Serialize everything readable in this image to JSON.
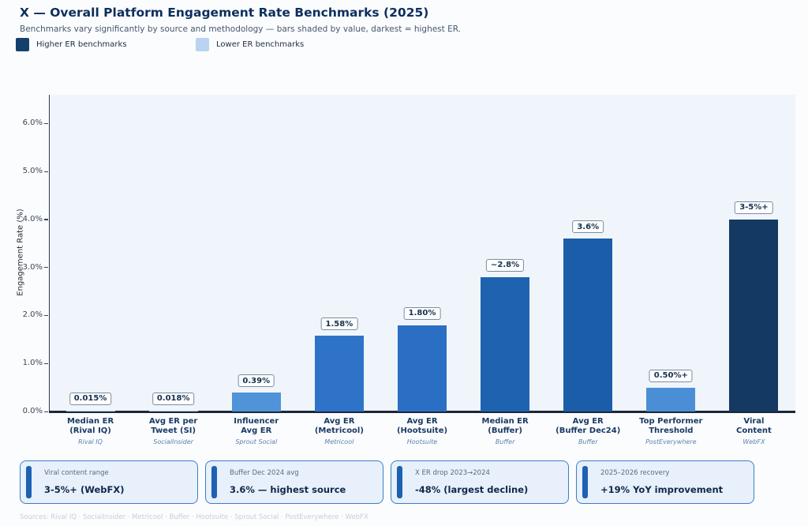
{
  "header": {
    "title": "X — Overall Platform Engagement Rate Benchmarks (2025)",
    "subtitle": "Benchmarks vary significantly by source and methodology — bars shaded by value, darkest = highest ER.",
    "legend": [
      {
        "label": "Higher ER benchmarks",
        "color": "#14406e"
      },
      {
        "label": "Lower ER benchmarks",
        "color": "#b9d3f0"
      }
    ]
  },
  "chart_data": {
    "type": "bar",
    "title": "X — Overall Platform Engagement Rate Benchmarks (2025)",
    "xlabel": "",
    "ylabel": "Engagement Rate (%)",
    "ylim": [
      0,
      6.6
    ],
    "yticks": [
      {
        "value": 0,
        "label": "0.0%"
      },
      {
        "value": 1,
        "label": "1.0%"
      },
      {
        "value": 2,
        "label": "2.0%"
      },
      {
        "value": 3,
        "label": "3.0%"
      },
      {
        "value": 4,
        "label": "4.0%"
      },
      {
        "value": 5,
        "label": "5.0%"
      },
      {
        "value": 6,
        "label": "6.0%"
      }
    ],
    "grid": false,
    "legend_position": "top-left",
    "bars": [
      {
        "category_line1": "Median ER",
        "category_line2": "(Rival IQ)",
        "source": "Rival IQ",
        "value": 0.015,
        "label": "0.015%",
        "color": "#b9d3f0"
      },
      {
        "category_line1": "Avg ER per",
        "category_line2": "Tweet (SI)",
        "source": "SocialInsider",
        "value": 0.018,
        "label": "0.018%",
        "color": "#b3d0ee"
      },
      {
        "category_line1": "Influencer",
        "category_line2": "Avg ER",
        "source": "Sprout Social",
        "value": 0.39,
        "label": "0.39%",
        "color": "#4f93d8"
      },
      {
        "category_line1": "Avg ER",
        "category_line2": "(Metricool)",
        "source": "Metricool",
        "value": 1.58,
        "label": "1.58%",
        "color": "#2e73c7"
      },
      {
        "category_line1": "Avg ER",
        "category_line2": "(Hootsuite)",
        "source": "Hootsuite",
        "value": 1.8,
        "label": "1.80%",
        "color": "#2a6fc3"
      },
      {
        "category_line1": "Median ER",
        "category_line2": "(Buffer)",
        "source": "Buffer",
        "value": 2.8,
        "label": "~2.8%",
        "color": "#1e63b0"
      },
      {
        "category_line1": "Avg ER",
        "category_line2": "(Buffer Dec24)",
        "source": "Buffer",
        "value": 3.6,
        "label": "3.6%",
        "color": "#1c5da9"
      },
      {
        "category_line1": "Top Performer",
        "category_line2": "Threshold",
        "source": "PostEverywhere",
        "value": 0.5,
        "label": "0.50%+",
        "color": "#4a8fd6"
      },
      {
        "category_line1": "Viral",
        "category_line2": "Content",
        "source": "WebFX",
        "value": 4.0,
        "label": "3-5%+",
        "color": "#143a63"
      }
    ]
  },
  "insight_cards": [
    {
      "label": "Viral content range",
      "value": "3-5%+ (WebFX)"
    },
    {
      "label": "Buffer Dec 2024 avg",
      "value": "3.6% — highest source"
    },
    {
      "label": "X ER drop 2023→2024",
      "value": "-48% (largest decline)"
    },
    {
      "label": "2025–2026 recovery",
      "value": "+19% YoY improvement"
    }
  ],
  "footer": {
    "sources": "Sources: Rival IQ · SocialInsider · Metricool · Buffer · Hootsuite · Sprout Social · PostEverywhere · WebFX"
  }
}
